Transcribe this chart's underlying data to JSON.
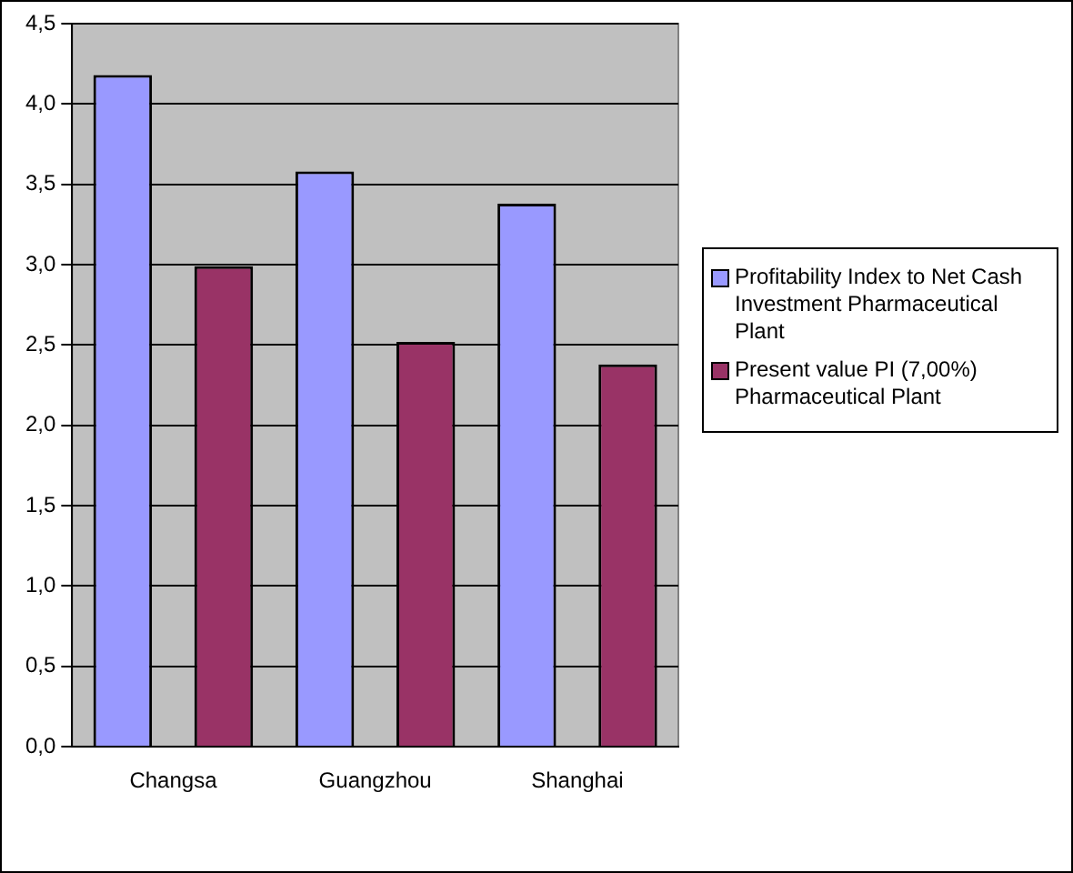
{
  "chart_data": {
    "type": "bar",
    "categories": [
      "Changsa",
      "Guangzhou",
      "Shanghai"
    ],
    "series": [
      {
        "name": "Profitability Index to Net Cash Investment Pharmaceutical Plant",
        "color": "#9999ff",
        "values": [
          4.18,
          3.58,
          3.38
        ]
      },
      {
        "name": "Present value PI (7,00%) Pharmaceutical Plant",
        "color": "#993366",
        "values": [
          2.99,
          2.52,
          2.38
        ]
      }
    ],
    "ylim": [
      0,
      4.5
    ],
    "yticks": [
      {
        "value": 0,
        "label": "0,0"
      },
      {
        "value": 0.5,
        "label": "0,5"
      },
      {
        "value": 1,
        "label": "1,0"
      },
      {
        "value": 1.5,
        "label": "1,5"
      },
      {
        "value": 2,
        "label": "2,0"
      },
      {
        "value": 2.5,
        "label": "2,5"
      },
      {
        "value": 3,
        "label": "3,0"
      },
      {
        "value": 3.5,
        "label": "3,5"
      },
      {
        "value": 4,
        "label": "4,0"
      },
      {
        "value": 4.5,
        "label": "4,5"
      }
    ],
    "grid": "y",
    "legend": "right"
  }
}
